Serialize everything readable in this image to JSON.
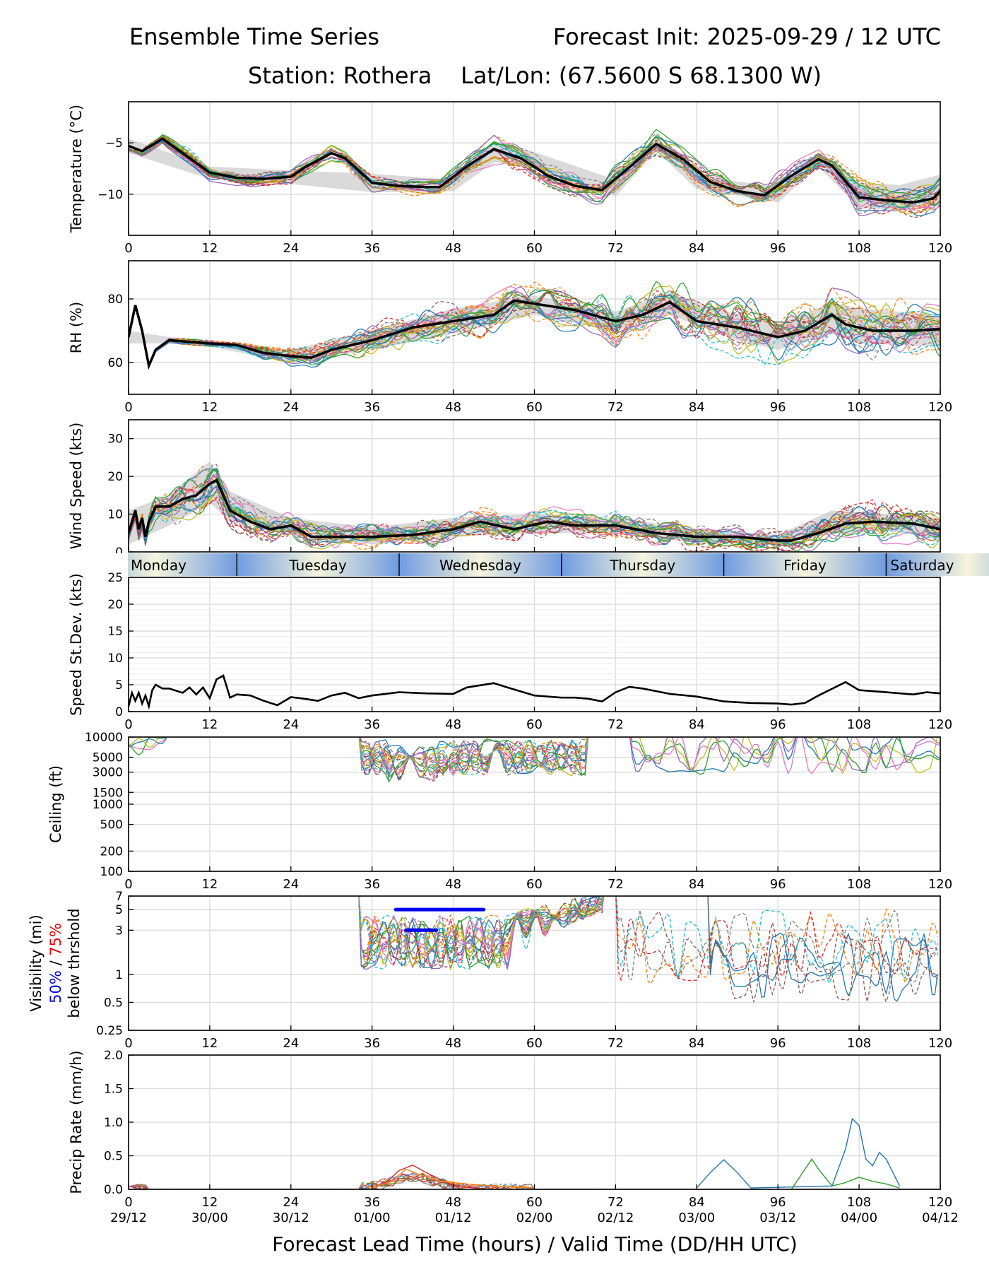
{
  "chart_data": [
    {
      "type": "line",
      "panel": "temperature",
      "title_left": "Ensemble Time Series",
      "title_right": "Forecast Init: 2025-09-29 / 12 UTC",
      "subtitle": "Station: Rothera    Lat/Lon: (67.5600 S 68.1300 W)",
      "ylabel": "Temperature (°C)",
      "xlim": [
        0,
        120
      ],
      "ylim": [
        -14,
        -1
      ],
      "yticks": [
        -5,
        -10
      ],
      "ytick_labels": [
        "−5",
        "−10"
      ],
      "xticks": [
        0,
        12,
        24,
        36,
        48,
        60,
        72,
        84,
        96,
        108,
        120
      ],
      "xtick_labels": [
        "0",
        "12",
        "24",
        "36",
        "48",
        "60",
        "72",
        "84",
        "96",
        "108",
        "120"
      ],
      "mean": {
        "x": [
          0,
          2,
          5,
          8,
          12,
          16,
          20,
          24,
          26,
          30,
          32,
          36,
          40,
          44,
          46,
          50,
          54,
          58,
          62,
          66,
          70,
          74,
          78,
          82,
          86,
          90,
          94,
          98,
          102,
          104,
          108,
          112,
          116,
          119,
          120
        ],
        "y": [
          -5.3,
          -5.8,
          -4.6,
          -6.0,
          -7.9,
          -8.4,
          -8.5,
          -8.3,
          -7.4,
          -6.0,
          -6.5,
          -8.9,
          -9.2,
          -9.3,
          -9.3,
          -7.3,
          -5.6,
          -6.5,
          -8.2,
          -9.2,
          -9.6,
          -7.4,
          -5.1,
          -6.6,
          -8.8,
          -9.7,
          -10.1,
          -8.2,
          -6.6,
          -7.2,
          -10.3,
          -10.6,
          -10.8,
          -10.4,
          -9.7
        ]
      },
      "spread": {
        "x": [
          0,
          12,
          24,
          36,
          48,
          54,
          60,
          72,
          78,
          84,
          96,
          102,
          108,
          114,
          120
        ],
        "lower": [
          -6.0,
          -8.5,
          -9.0,
          -9.8,
          -9.7,
          -6.9,
          -7.4,
          -10.2,
          -5.8,
          -9.5,
          -10.8,
          -7.3,
          -11.3,
          -11.6,
          -11.1
        ],
        "upper": [
          -4.6,
          -7.3,
          -7.7,
          -8.0,
          -8.6,
          -4.8,
          -5.9,
          -8.6,
          -4.6,
          -8.2,
          -9.3,
          -5.9,
          -8.9,
          -9.1,
          -8.1
        ]
      }
    },
    {
      "type": "line",
      "panel": "relative_humidity",
      "ylabel": "RH (%)",
      "xlim": [
        0,
        120
      ],
      "ylim": [
        50,
        92
      ],
      "yticks": [
        60,
        80
      ],
      "ytick_labels": [
        "60",
        "80"
      ],
      "xticks": [
        0,
        12,
        24,
        36,
        48,
        60,
        72,
        84,
        96,
        108,
        120
      ],
      "xtick_labels": [
        "0",
        "12",
        "24",
        "36",
        "48",
        "60",
        "72",
        "84",
        "96",
        "108",
        "120"
      ],
      "mean": {
        "x": [
          0,
          1,
          2,
          3,
          4,
          6,
          12,
          16,
          20,
          24,
          27,
          30,
          36,
          42,
          48,
          54,
          57,
          60,
          66,
          72,
          76,
          80,
          84,
          90,
          96,
          100,
          104,
          106,
          110,
          116,
          120
        ],
        "y": [
          68,
          78,
          70,
          59,
          64,
          67,
          66,
          65.5,
          63,
          62,
          61.5,
          64,
          67,
          71,
          73,
          75,
          79.5,
          78.5,
          76.5,
          73,
          75,
          79,
          73,
          71,
          68,
          70,
          75,
          72,
          70,
          70,
          70.5
        ]
      },
      "spread": {
        "x": [
          0,
          6,
          12,
          24,
          36,
          48,
          60,
          72,
          80,
          90,
          96,
          104,
          108,
          120
        ],
        "lower": [
          66,
          66,
          65,
          60,
          64,
          69,
          75,
          70,
          75,
          67,
          64,
          69,
          66,
          65
        ],
        "upper": [
          70,
          68,
          67,
          64,
          70,
          77,
          81,
          76,
          82,
          75,
          72,
          79,
          77,
          75
        ]
      }
    },
    {
      "type": "line",
      "panel": "wind_speed",
      "ylabel": "Wind Speed (kts)",
      "xlim": [
        0,
        120
      ],
      "ylim": [
        0,
        35
      ],
      "yticks": [
        0,
        10,
        20,
        30
      ],
      "ytick_labels": [
        "0",
        "10",
        "20",
        "30"
      ],
      "xticks": [
        0,
        12,
        24,
        36,
        48,
        60,
        72,
        84,
        96,
        108,
        120
      ],
      "mean": {
        "x": [
          0,
          1,
          1.5,
          2,
          2.5,
          3,
          4,
          6,
          8,
          10,
          12,
          13,
          15,
          18,
          21,
          24,
          27,
          30,
          36,
          42,
          48,
          52,
          57,
          62,
          66,
          72,
          78,
          84,
          90,
          96,
          98,
          102,
          106,
          110,
          116,
          120
        ],
        "y": [
          5,
          11,
          6,
          9,
          4,
          8,
          12,
          12,
          14,
          15,
          18,
          19,
          11,
          8,
          6,
          7,
          4,
          4,
          4,
          4.5,
          6,
          8,
          6,
          8,
          7,
          7,
          5,
          4,
          4,
          3,
          3,
          5,
          7.5,
          8,
          7.5,
          6
        ]
      },
      "spread": {
        "x": [
          0,
          6,
          12,
          15,
          24,
          36,
          48,
          60,
          72,
          84,
          96,
          104,
          112,
          120
        ],
        "lower": [
          2,
          7,
          13,
          8,
          5,
          2,
          4,
          5,
          5,
          2.5,
          2,
          5,
          5.5,
          4
        ],
        "upper": [
          11,
          15,
          24,
          16,
          9,
          6.5,
          9,
          10,
          9,
          6,
          4.5,
          11,
          10,
          9
        ]
      },
      "day_labels": [
        "Monday",
        "Tuesday",
        "Wednesday",
        "Thursday",
        "Friday",
        "Saturday"
      ]
    },
    {
      "type": "line",
      "panel": "speed_std_dev",
      "ylabel": "Speed St.Dev. (kts)",
      "xlim": [
        0,
        120
      ],
      "ylim": [
        0,
        25
      ],
      "yticks": [
        0,
        5,
        10,
        15,
        20,
        25
      ],
      "ytick_labels": [
        "0",
        "5",
        "10",
        "15",
        "20",
        "25"
      ],
      "xticks": [
        0,
        12,
        24,
        36,
        48,
        60,
        72,
        84,
        96,
        108,
        120
      ],
      "xtick_labels": [
        "0",
        "12",
        "24",
        "36",
        "48",
        "60",
        "72",
        "84",
        "96",
        "108",
        "120"
      ],
      "series": [
        {
          "name": "Speed St.Dev.",
          "x": [
            0,
            0.5,
            1,
            1.5,
            2,
            2.5,
            3,
            3.5,
            4,
            5,
            6,
            8,
            9,
            10,
            11,
            12,
            13,
            14,
            15,
            16,
            18,
            20,
            22,
            24,
            26,
            28,
            30,
            32,
            34,
            36,
            40,
            44,
            48,
            50,
            54,
            56,
            60,
            64,
            66,
            68,
            70,
            72,
            74,
            76,
            80,
            84,
            88,
            92,
            96,
            98,
            100,
            102,
            106,
            108,
            112,
            116,
            118,
            120
          ],
          "y": [
            1,
            3.5,
            2,
            3.5,
            1.5,
            3,
            1,
            4,
            5,
            4.3,
            4.3,
            3.5,
            4.5,
            3.2,
            4.5,
            2.5,
            6,
            6.7,
            2.6,
            3.2,
            3,
            2,
            1.2,
            2.7,
            2.4,
            2,
            3,
            3.5,
            2.5,
            3,
            3.6,
            3.4,
            3.3,
            4.5,
            5.3,
            4.5,
            3,
            2.6,
            2.6,
            2.4,
            1.9,
            3.6,
            4.6,
            4.3,
            3.3,
            2.8,
            1.9,
            1.6,
            1.5,
            1.3,
            1.6,
            3,
            5.5,
            4,
            3.6,
            3.2,
            3.6,
            3.4
          ]
        }
      ]
    },
    {
      "type": "line",
      "panel": "ceiling",
      "ylabel": "Ceiling (ft)",
      "y_scale": "log",
      "xlim": [
        0,
        120
      ],
      "ylim": [
        100,
        10000
      ],
      "yticks": [
        100,
        200,
        500,
        1000,
        1500,
        3000,
        5000,
        10000
      ],
      "ytick_labels": [
        "100",
        "200",
        "500",
        "1000",
        "1500",
        "3000",
        "5000",
        "10000"
      ],
      "xticks": [
        0,
        12,
        24,
        36,
        48,
        60,
        72,
        84,
        96,
        108,
        120
      ],
      "xtick_labels": [
        "0",
        "12",
        "24",
        "36",
        "48",
        "60",
        "72",
        "84",
        "96",
        "108",
        "120"
      ]
    },
    {
      "type": "line",
      "panel": "visibility",
      "ylabel_lines": [
        "Visibility (mi)",
        "below thrshold"
      ],
      "ylabel_pct_50": "50%",
      "ylabel_pct_sep": " / ",
      "ylabel_pct_75": "75%",
      "y_scale": "log",
      "xlim": [
        0,
        120
      ],
      "ylim": [
        0.25,
        7
      ],
      "yticks": [
        0.25,
        0.5,
        1,
        3,
        5,
        7
      ],
      "ytick_labels": [
        "0.25",
        "0.5",
        "1",
        "3",
        "5",
        "7"
      ],
      "xticks": [
        0,
        12,
        24,
        36,
        48,
        60,
        72,
        84,
        96,
        108,
        120
      ],
      "xtick_labels": [
        "0",
        "12",
        "24",
        "36",
        "48",
        "60",
        "72",
        "84",
        "96",
        "108",
        "120"
      ],
      "threshold_bars": [
        {
          "name": "50% below 5 mi",
          "x_start": 39.5,
          "x_end": 52.5,
          "y": 5,
          "color": "#0000ee"
        },
        {
          "name": "50% below 3 mi",
          "x_start": 41,
          "x_end": 45.5,
          "y": 3,
          "color": "#0000ee"
        }
      ]
    },
    {
      "type": "line",
      "panel": "precip_rate",
      "ylabel": "Precip Rate (mm/h)",
      "xlabel": "Forecast Lead Time (hours) / Valid Time (DD/HH UTC)",
      "xlim": [
        0,
        120
      ],
      "ylim": [
        0,
        2
      ],
      "yticks": [
        0,
        0.5,
        1,
        1.5,
        2
      ],
      "ytick_labels": [
        "0.0",
        "0.5",
        "1.0",
        "1.5",
        "2.0"
      ],
      "xticks": [
        0,
        12,
        24,
        36,
        48,
        60,
        72,
        84,
        96,
        108,
        120
      ],
      "xtick_labels": [
        "0",
        "12",
        "24",
        "36",
        "48",
        "60",
        "72",
        "84",
        "96",
        "108",
        "120"
      ],
      "valid_time_labels": [
        "29/12",
        "30/00",
        "30/12",
        "01/00",
        "01/12",
        "02/00",
        "02/12",
        "03/00",
        "03/12",
        "04/00",
        "04/12"
      ],
      "series": [
        {
          "name": "member-blue",
          "x": [
            84,
            86,
            88,
            90,
            92,
            104,
            106,
            107,
            108,
            109,
            110,
            111,
            112,
            114
          ],
          "y": [
            0.02,
            0.25,
            0.44,
            0.25,
            0.02,
            0.05,
            0.6,
            1.05,
            0.95,
            0.45,
            0.35,
            0.55,
            0.45,
            0.05
          ]
        },
        {
          "name": "member-green",
          "x": [
            98,
            100,
            101,
            102,
            104,
            106,
            108,
            110,
            112,
            114
          ],
          "y": [
            0.0,
            0.3,
            0.45,
            0.3,
            0.05,
            0.1,
            0.18,
            0.12,
            0.08,
            0.02
          ]
        },
        {
          "name": "member-red",
          "x": [
            36,
            38,
            40,
            42,
            44,
            46,
            48,
            52
          ],
          "y": [
            0.02,
            0.1,
            0.28,
            0.36,
            0.25,
            0.15,
            0.05,
            0.01
          ]
        },
        {
          "name": "member-orange",
          "x": [
            36,
            39,
            41,
            43,
            46,
            50,
            54,
            60
          ],
          "y": [
            0.02,
            0.12,
            0.3,
            0.22,
            0.12,
            0.08,
            0.05,
            0.02
          ]
        }
      ]
    }
  ]
}
